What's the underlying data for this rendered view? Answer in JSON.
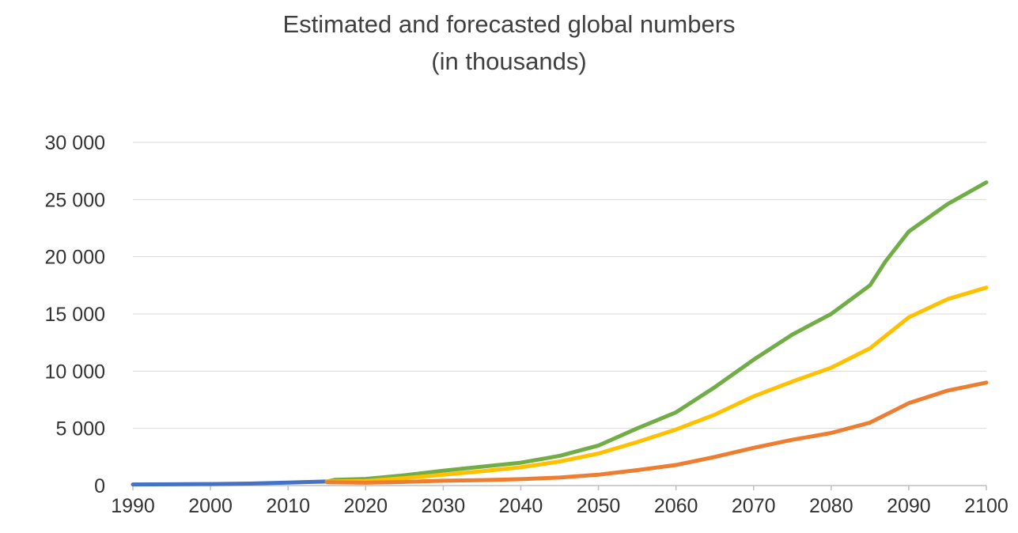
{
  "chart_data": {
    "type": "line",
    "title": "Estimated and forecasted global numbers",
    "subtitle": "(in thousands)",
    "xlabel": "",
    "ylabel": "",
    "xlim": [
      1990,
      2100
    ],
    "ylim": [
      0,
      30000
    ],
    "x_ticks": [
      "1990",
      "2000",
      "2010",
      "2020",
      "2030",
      "2040",
      "2050",
      "2060",
      "2070",
      "2080",
      "2090",
      "2100"
    ],
    "y_ticks": [
      "0",
      "5 000",
      "10 000",
      "15 000",
      "20 000",
      "25 000",
      "30 000"
    ],
    "grid": "horizontal",
    "legend": "none",
    "series": [
      {
        "color": "#4472C4",
        "points": [
          [
            1990,
            100
          ],
          [
            1995,
            110
          ],
          [
            2000,
            130
          ],
          [
            2005,
            170
          ],
          [
            2008,
            220
          ],
          [
            2010,
            260
          ],
          [
            2015,
            350
          ]
        ]
      },
      {
        "color": "#70AD47",
        "points": [
          [
            2015,
            350
          ],
          [
            2016,
            500
          ],
          [
            2020,
            580
          ],
          [
            2025,
            900
          ],
          [
            2030,
            1300
          ],
          [
            2035,
            1650
          ],
          [
            2040,
            2000
          ],
          [
            2045,
            2600
          ],
          [
            2050,
            3500
          ],
          [
            2055,
            5000
          ],
          [
            2060,
            6400
          ],
          [
            2065,
            8600
          ],
          [
            2070,
            11000
          ],
          [
            2075,
            13200
          ],
          [
            2080,
            15000
          ],
          [
            2085,
            17500
          ],
          [
            2087,
            19600
          ],
          [
            2090,
            22200
          ],
          [
            2095,
            24600
          ],
          [
            2100,
            26500
          ]
        ]
      },
      {
        "color": "#FFC000",
        "points": [
          [
            2015,
            350
          ],
          [
            2020,
            400
          ],
          [
            2025,
            650
          ],
          [
            2030,
            950
          ],
          [
            2035,
            1250
          ],
          [
            2040,
            1600
          ],
          [
            2045,
            2100
          ],
          [
            2050,
            2800
          ],
          [
            2055,
            3800
          ],
          [
            2060,
            4900
          ],
          [
            2065,
            6200
          ],
          [
            2070,
            7800
          ],
          [
            2075,
            9100
          ],
          [
            2080,
            10300
          ],
          [
            2085,
            12000
          ],
          [
            2090,
            14700
          ],
          [
            2095,
            16300
          ],
          [
            2100,
            17300
          ]
        ]
      },
      {
        "color": "#ED7D31",
        "points": [
          [
            2015,
            300
          ],
          [
            2020,
            250
          ],
          [
            2025,
            320
          ],
          [
            2030,
            420
          ],
          [
            2035,
            480
          ],
          [
            2040,
            560
          ],
          [
            2045,
            700
          ],
          [
            2050,
            950
          ],
          [
            2055,
            1350
          ],
          [
            2060,
            1800
          ],
          [
            2065,
            2500
          ],
          [
            2070,
            3300
          ],
          [
            2075,
            4000
          ],
          [
            2080,
            4600
          ],
          [
            2085,
            5500
          ],
          [
            2090,
            7200
          ],
          [
            2095,
            8300
          ],
          [
            2100,
            9000
          ]
        ]
      }
    ]
  }
}
